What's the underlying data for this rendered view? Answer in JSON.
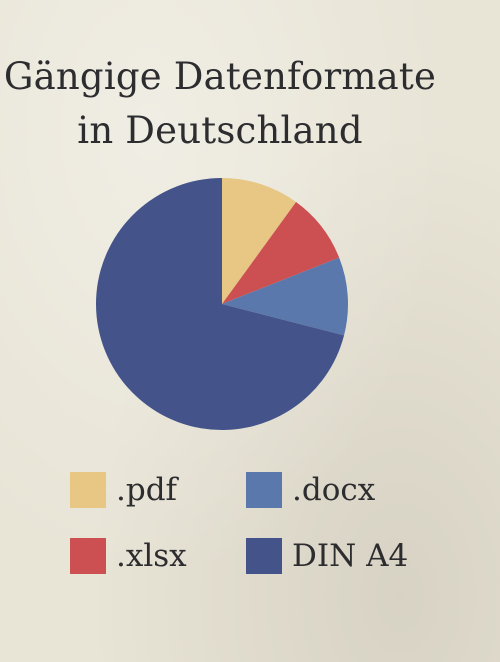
{
  "chart_data": {
    "type": "pie",
    "title_lines": [
      "Gängige Datenformate",
      "in Deutschland"
    ],
    "slices": [
      {
        "label": ".pdf",
        "value": 10,
        "color": "#e8c684"
      },
      {
        "label": ".xlsx",
        "value": 9,
        "color": "#cc5052"
      },
      {
        "label": ".docx",
        "value": 10,
        "color": "#5a78ac"
      },
      {
        "label": "DIN A4",
        "value": 71,
        "color": "#44548a"
      }
    ],
    "legend": {
      "placement": "bottom",
      "order": [
        ".pdf",
        ".docx",
        ".xlsx",
        "DIN A4"
      ]
    },
    "start_angle": "top",
    "direction": "clockwise"
  }
}
